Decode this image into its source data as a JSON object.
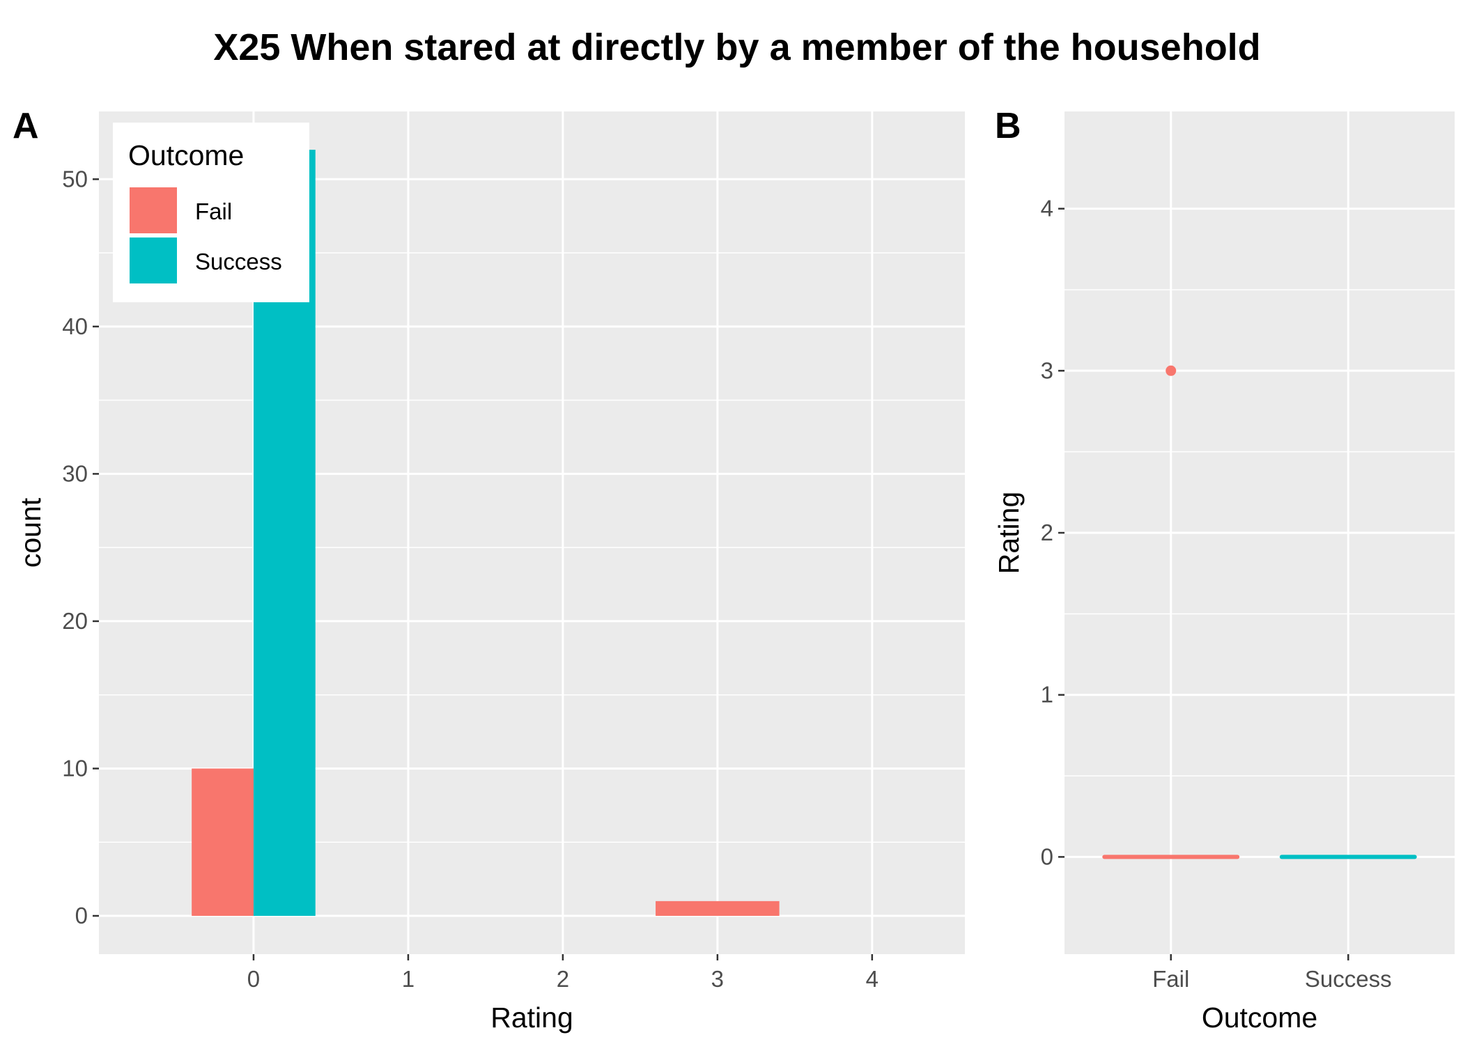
{
  "figure": {
    "title": "X25 When stared at directly by a member of the household"
  },
  "colors": {
    "fail": "#F8766D",
    "success": "#00BFC4",
    "panel": "#EBEBEB",
    "grid": "#FFFFFF"
  },
  "chart_data": [
    {
      "panel_label": "A",
      "type": "bar",
      "xlabel": "Rating",
      "ylabel": "count",
      "x_ticks": [
        "0",
        "1",
        "2",
        "3",
        "4"
      ],
      "y_ticks": [
        "0",
        "10",
        "20",
        "30",
        "40",
        "50"
      ],
      "xlim": [
        -1,
        4.6
      ],
      "ylim": [
        -2.6,
        54.6
      ],
      "grid": true,
      "legend": {
        "title": "Outcome",
        "position": "top-left",
        "entries": [
          "Fail",
          "Success"
        ]
      },
      "series": [
        {
          "name": "Fail",
          "color": "#F8766D",
          "points": [
            {
              "x": 0,
              "y": 10
            },
            {
              "x": 3,
              "y": 1
            }
          ]
        },
        {
          "name": "Success",
          "color": "#00BFC4",
          "points": [
            {
              "x": 0,
              "y": 52
            }
          ]
        }
      ]
    },
    {
      "panel_label": "B",
      "type": "box",
      "xlabel": "Outcome",
      "ylabel": "Rating",
      "categories": [
        "Fail",
        "Success"
      ],
      "y_ticks": [
        "0",
        "1",
        "2",
        "3",
        "4"
      ],
      "ylim": [
        -0.6,
        4.6
      ],
      "grid": true,
      "series": [
        {
          "name": "Fail",
          "color": "#F8766D",
          "median": 0,
          "q1": 0,
          "q3": 0,
          "whisker_low": 0,
          "whisker_high": 0,
          "outliers": [
            3
          ]
        },
        {
          "name": "Success",
          "color": "#00BFC4",
          "median": 0,
          "q1": 0,
          "q3": 0,
          "whisker_low": 0,
          "whisker_high": 0,
          "outliers": []
        }
      ]
    }
  ]
}
